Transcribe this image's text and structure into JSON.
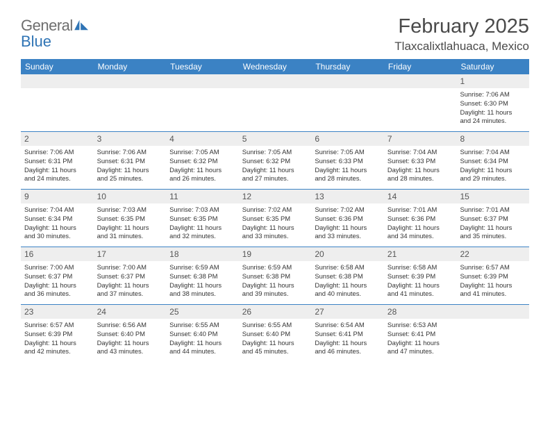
{
  "logo": {
    "text1": "General",
    "text2": "Blue",
    "accent_color": "#2f74b5"
  },
  "title": "February 2025",
  "location": "Tlaxcalixtlahuaca, Mexico",
  "colors": {
    "header_bg": "#3b82c4",
    "header_text": "#ffffff",
    "daynum_bg": "#eeeeee",
    "rule": "#3b82c4",
    "body_text": "#333333"
  },
  "day_names": [
    "Sunday",
    "Monday",
    "Tuesday",
    "Wednesday",
    "Thursday",
    "Friday",
    "Saturday"
  ],
  "weeks": [
    [
      null,
      null,
      null,
      null,
      null,
      null,
      {
        "d": "1",
        "sr": "Sunrise: 7:06 AM",
        "ss": "Sunset: 6:30 PM",
        "dl1": "Daylight: 11 hours",
        "dl2": "and 24 minutes."
      }
    ],
    [
      {
        "d": "2",
        "sr": "Sunrise: 7:06 AM",
        "ss": "Sunset: 6:31 PM",
        "dl1": "Daylight: 11 hours",
        "dl2": "and 24 minutes."
      },
      {
        "d": "3",
        "sr": "Sunrise: 7:06 AM",
        "ss": "Sunset: 6:31 PM",
        "dl1": "Daylight: 11 hours",
        "dl2": "and 25 minutes."
      },
      {
        "d": "4",
        "sr": "Sunrise: 7:05 AM",
        "ss": "Sunset: 6:32 PM",
        "dl1": "Daylight: 11 hours",
        "dl2": "and 26 minutes."
      },
      {
        "d": "5",
        "sr": "Sunrise: 7:05 AM",
        "ss": "Sunset: 6:32 PM",
        "dl1": "Daylight: 11 hours",
        "dl2": "and 27 minutes."
      },
      {
        "d": "6",
        "sr": "Sunrise: 7:05 AM",
        "ss": "Sunset: 6:33 PM",
        "dl1": "Daylight: 11 hours",
        "dl2": "and 28 minutes."
      },
      {
        "d": "7",
        "sr": "Sunrise: 7:04 AM",
        "ss": "Sunset: 6:33 PM",
        "dl1": "Daylight: 11 hours",
        "dl2": "and 28 minutes."
      },
      {
        "d": "8",
        "sr": "Sunrise: 7:04 AM",
        "ss": "Sunset: 6:34 PM",
        "dl1": "Daylight: 11 hours",
        "dl2": "and 29 minutes."
      }
    ],
    [
      {
        "d": "9",
        "sr": "Sunrise: 7:04 AM",
        "ss": "Sunset: 6:34 PM",
        "dl1": "Daylight: 11 hours",
        "dl2": "and 30 minutes."
      },
      {
        "d": "10",
        "sr": "Sunrise: 7:03 AM",
        "ss": "Sunset: 6:35 PM",
        "dl1": "Daylight: 11 hours",
        "dl2": "and 31 minutes."
      },
      {
        "d": "11",
        "sr": "Sunrise: 7:03 AM",
        "ss": "Sunset: 6:35 PM",
        "dl1": "Daylight: 11 hours",
        "dl2": "and 32 minutes."
      },
      {
        "d": "12",
        "sr": "Sunrise: 7:02 AM",
        "ss": "Sunset: 6:35 PM",
        "dl1": "Daylight: 11 hours",
        "dl2": "and 33 minutes."
      },
      {
        "d": "13",
        "sr": "Sunrise: 7:02 AM",
        "ss": "Sunset: 6:36 PM",
        "dl1": "Daylight: 11 hours",
        "dl2": "and 33 minutes."
      },
      {
        "d": "14",
        "sr": "Sunrise: 7:01 AM",
        "ss": "Sunset: 6:36 PM",
        "dl1": "Daylight: 11 hours",
        "dl2": "and 34 minutes."
      },
      {
        "d": "15",
        "sr": "Sunrise: 7:01 AM",
        "ss": "Sunset: 6:37 PM",
        "dl1": "Daylight: 11 hours",
        "dl2": "and 35 minutes."
      }
    ],
    [
      {
        "d": "16",
        "sr": "Sunrise: 7:00 AM",
        "ss": "Sunset: 6:37 PM",
        "dl1": "Daylight: 11 hours",
        "dl2": "and 36 minutes."
      },
      {
        "d": "17",
        "sr": "Sunrise: 7:00 AM",
        "ss": "Sunset: 6:37 PM",
        "dl1": "Daylight: 11 hours",
        "dl2": "and 37 minutes."
      },
      {
        "d": "18",
        "sr": "Sunrise: 6:59 AM",
        "ss": "Sunset: 6:38 PM",
        "dl1": "Daylight: 11 hours",
        "dl2": "and 38 minutes."
      },
      {
        "d": "19",
        "sr": "Sunrise: 6:59 AM",
        "ss": "Sunset: 6:38 PM",
        "dl1": "Daylight: 11 hours",
        "dl2": "and 39 minutes."
      },
      {
        "d": "20",
        "sr": "Sunrise: 6:58 AM",
        "ss": "Sunset: 6:38 PM",
        "dl1": "Daylight: 11 hours",
        "dl2": "and 40 minutes."
      },
      {
        "d": "21",
        "sr": "Sunrise: 6:58 AM",
        "ss": "Sunset: 6:39 PM",
        "dl1": "Daylight: 11 hours",
        "dl2": "and 41 minutes."
      },
      {
        "d": "22",
        "sr": "Sunrise: 6:57 AM",
        "ss": "Sunset: 6:39 PM",
        "dl1": "Daylight: 11 hours",
        "dl2": "and 41 minutes."
      }
    ],
    [
      {
        "d": "23",
        "sr": "Sunrise: 6:57 AM",
        "ss": "Sunset: 6:39 PM",
        "dl1": "Daylight: 11 hours",
        "dl2": "and 42 minutes."
      },
      {
        "d": "24",
        "sr": "Sunrise: 6:56 AM",
        "ss": "Sunset: 6:40 PM",
        "dl1": "Daylight: 11 hours",
        "dl2": "and 43 minutes."
      },
      {
        "d": "25",
        "sr": "Sunrise: 6:55 AM",
        "ss": "Sunset: 6:40 PM",
        "dl1": "Daylight: 11 hours",
        "dl2": "and 44 minutes."
      },
      {
        "d": "26",
        "sr": "Sunrise: 6:55 AM",
        "ss": "Sunset: 6:40 PM",
        "dl1": "Daylight: 11 hours",
        "dl2": "and 45 minutes."
      },
      {
        "d": "27",
        "sr": "Sunrise: 6:54 AM",
        "ss": "Sunset: 6:41 PM",
        "dl1": "Daylight: 11 hours",
        "dl2": "and 46 minutes."
      },
      {
        "d": "28",
        "sr": "Sunrise: 6:53 AM",
        "ss": "Sunset: 6:41 PM",
        "dl1": "Daylight: 11 hours",
        "dl2": "and 47 minutes."
      },
      null
    ]
  ]
}
